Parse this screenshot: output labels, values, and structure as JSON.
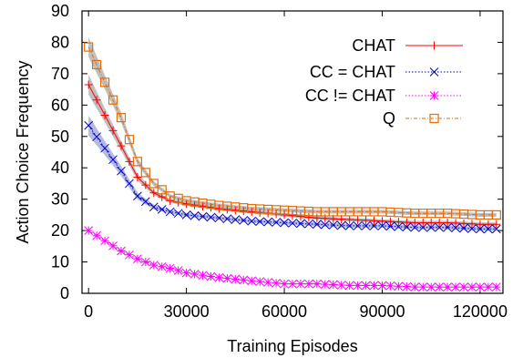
{
  "chart_data": {
    "type": "line",
    "xlabel": "Training Episodes",
    "ylabel": "Action Choice Frequency",
    "xlim": [
      -2000,
      127000
    ],
    "ylim": [
      0,
      90
    ],
    "xticks": [
      0,
      30000,
      60000,
      90000,
      120000
    ],
    "xtick_labels": [
      "0",
      "30000",
      "60000",
      "90000",
      "120000"
    ],
    "yticks": [
      0,
      10,
      20,
      30,
      40,
      50,
      60,
      70,
      80,
      90
    ],
    "ytick_labels": [
      "0",
      "10",
      "20",
      "30",
      "40",
      "50",
      "60",
      "70",
      "80",
      "90"
    ],
    "legend_position": "top-right",
    "x": [
      0,
      10000,
      15000,
      20000,
      25000,
      30000,
      40000,
      50000,
      60000,
      70000,
      80000,
      90000,
      100000,
      110000,
      120000,
      126000
    ],
    "series": [
      {
        "name": "CHAT",
        "color": "#ff0000",
        "marker": "plus",
        "line": "solid",
        "band": true,
        "values": [
          66.5,
          47,
          37,
          32,
          29.5,
          28.5,
          27,
          26,
          25,
          24,
          23.5,
          23,
          22.5,
          22.5,
          22,
          22
        ]
      },
      {
        "name": "CC = CHAT",
        "color": "#0000cc",
        "marker": "x",
        "line": "dotted",
        "band": true,
        "values": [
          53.5,
          39,
          31,
          27.5,
          26,
          25,
          24,
          23,
          22.5,
          22,
          21.5,
          21.5,
          21,
          21,
          20.5,
          20.5
        ]
      },
      {
        "name": "CC != CHAT",
        "color": "#ff00ff",
        "marker": "star",
        "line": "dotted",
        "band": false,
        "values": [
          20,
          13.5,
          11,
          9,
          8,
          6.5,
          5,
          4,
          3,
          3,
          2.5,
          2.5,
          2,
          2,
          2,
          2
        ]
      },
      {
        "name": "Q",
        "color": "#e46c0a",
        "marker": "square",
        "line": "dashdot",
        "band": true,
        "values": [
          78.5,
          56,
          42,
          35,
          31,
          29.5,
          28,
          27,
          26.5,
          26,
          26,
          26,
          25.5,
          25.5,
          25,
          25
        ]
      }
    ]
  }
}
